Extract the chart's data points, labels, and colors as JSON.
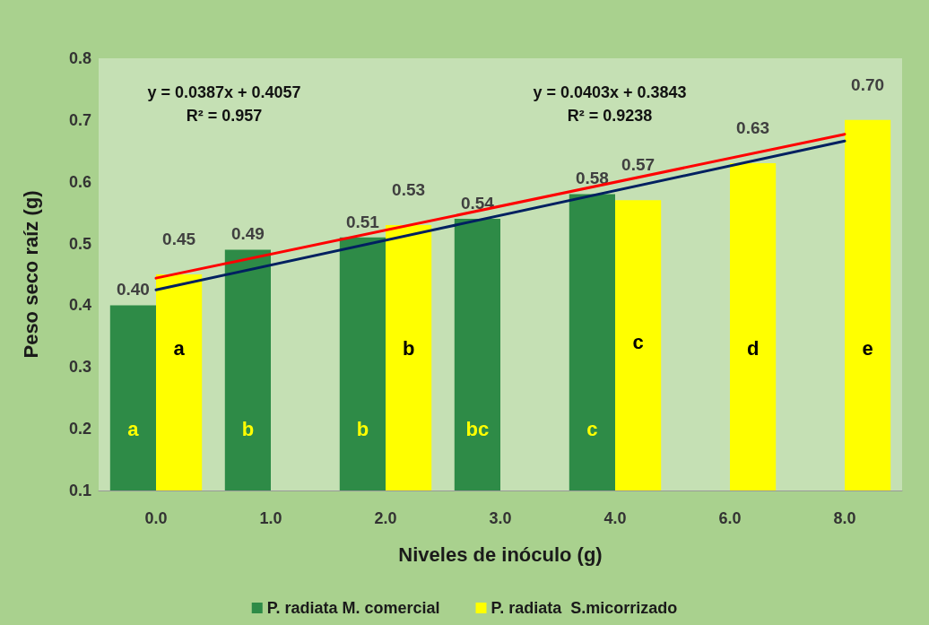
{
  "chart_data": {
    "type": "bar",
    "xlabel": "Niveles de inóculo (g)",
    "ylabel": "Peso seco raíz (g)",
    "categories": [
      "0.0",
      "1.0",
      "2.0",
      "3.0",
      "4.0",
      "6.0",
      "8.0"
    ],
    "series": [
      {
        "name": "P. radiata M. comercial",
        "color": "#2e8b47",
        "values": [
          0.4,
          0.49,
          0.51,
          0.54,
          0.58,
          null,
          null
        ],
        "value_labels": [
          "0.40",
          "0.49",
          "0.51",
          "0.54",
          "0.58",
          null,
          null
        ]
      },
      {
        "name": "P. radiata  S.micorrizado",
        "color": "#ffff00",
        "values": [
          0.45,
          null,
          0.53,
          null,
          0.57,
          0.63,
          0.7
        ],
        "value_labels": [
          "0.45",
          null,
          "0.53",
          null,
          "0.57",
          "0.63",
          "0.70"
        ]
      },
      {
        "type": "line",
        "color": "#ff0000",
        "x": [
          "0.0",
          "8.0"
        ],
        "values": [
          0.444,
          0.677
        ]
      },
      {
        "type": "line",
        "color": "#002060",
        "x": [
          "0.0",
          "8.0"
        ],
        "values": [
          0.425,
          0.666
        ]
      }
    ],
    "annotations": [
      "y = 0.0387x + 0.4057\nR² = 0.957",
      "y = 0.0403x + 0.3843\nR² = 0.9238",
      {
        "text": "a",
        "x": "0.0",
        "y": 0.2
      },
      {
        "text": "b",
        "x": "1.0",
        "y": 0.2
      },
      {
        "text": "b",
        "x": "2.0",
        "y": 0.2
      },
      {
        "text": "bc",
        "x": "3.0",
        "y": 0.2
      },
      {
        "text": "c",
        "x": "4.0",
        "y": 0.2
      },
      {
        "text": "a",
        "x": "0.0",
        "y": 0.33
      },
      {
        "text": "b",
        "x": "2.0",
        "y": 0.33
      },
      {
        "text": "c",
        "x": "4.0",
        "y": 0.34
      },
      {
        "text": "d",
        "x": "6.0",
        "y": 0.33
      },
      {
        "text": "e",
        "x": "8.0",
        "y": 0.33
      }
    ],
    "ylim": [
      0.1,
      0.8
    ],
    "yticks": [
      0.1,
      0.2,
      0.3,
      0.4,
      0.5,
      0.6,
      0.7,
      0.8
    ],
    "grid": false,
    "legend": "bottom",
    "marker": "none"
  }
}
